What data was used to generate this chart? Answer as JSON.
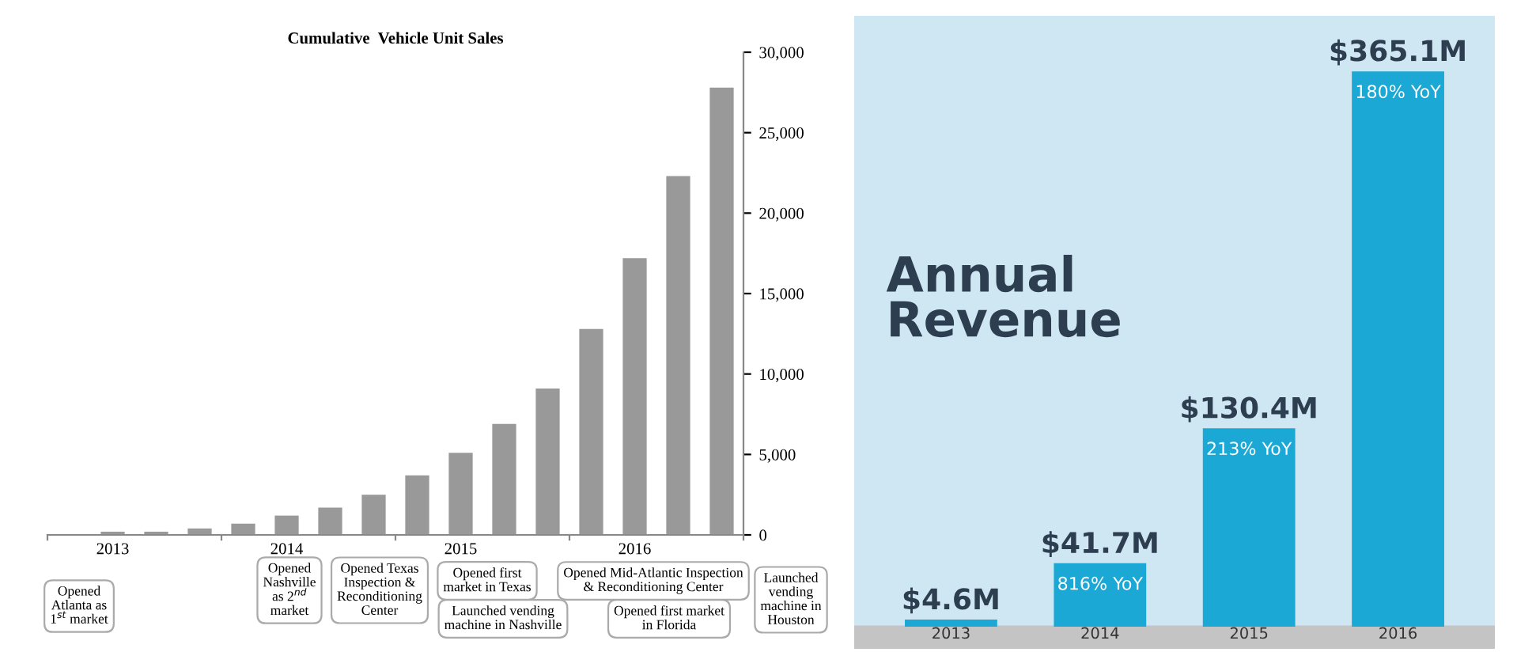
{
  "chart_data": [
    {
      "type": "bar",
      "title": "Cumulative  Vehicle Unit Sales",
      "categories": [
        null,
        "2013",
        null,
        null,
        null,
        "2014",
        null,
        null,
        null,
        "2015",
        null,
        null,
        null,
        "2016",
        null,
        null
      ],
      "values": [
        0,
        200,
        200,
        400,
        700,
        1200,
        1700,
        2500,
        3700,
        5100,
        6900,
        9100,
        12800,
        17200,
        22300,
        27800
      ],
      "color": "#999999",
      "ylim": [
        0,
        30000
      ],
      "yticks": [
        0,
        {
          "value": 5000,
          "label": "5,000"
        },
        {
          "value": 10000,
          "label": "10,000"
        },
        {
          "value": 15000,
          "label": "15,000"
        },
        {
          "value": 20000,
          "label": "20,000"
        },
        {
          "value": 25000,
          "label": "25,000"
        },
        {
          "value": 30000,
          "label": "30,000"
        }
      ],
      "grid": false,
      "annotations": [
        "Opened\nAtlanta as\n1$^{st}$ market",
        "Opened\nNashville\nas 2$^{nd}$\nmarket",
        "Opened Texas\nInspection &\nReconditioning\nCenter",
        "Opened first\nmarket in Texas",
        "Launched vending\nmachine in Nashville",
        "Opened Mid-Atlantic Inspection\n& Reconditioning Center",
        "Opened first market\nin Florida",
        "Launched\nvending\nmachine in\nHouston"
      ]
    },
    {
      "type": "bar",
      "title": "Annual Revenue",
      "categories": [
        "2013",
        "2014",
        "2015",
        "2016"
      ],
      "values": [
        4.6,
        41.7,
        130.4,
        365.1
      ],
      "color": "#1ba8d5",
      "value_labels": [
        "$4.6M",
        "$41.7M",
        "$130.4M",
        "$365.1M"
      ],
      "annotations": [
        {
          "text": "816% YoY",
          "x": "2014",
          "y": 41.7
        },
        {
          "text": "213% YoY",
          "x": "2015",
          "y": 130.4
        },
        {
          "text": "180% YoY",
          "x": "2016",
          "y": 365.1
        }
      ]
    }
  ]
}
